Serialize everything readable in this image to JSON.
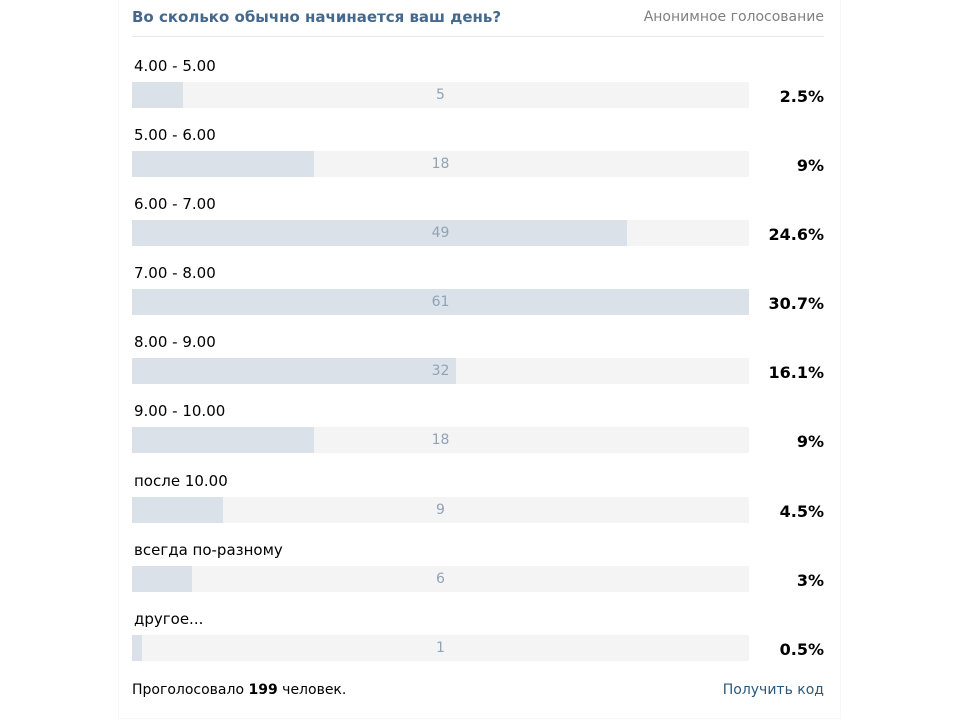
{
  "poll": {
    "question": "Во сколько обычно начинается ваш день?",
    "type_label": "Анонимное голосование",
    "options": [
      {
        "label": "4.00 - 5.00",
        "votes": "5",
        "percent": "2.5%",
        "fill": 0.082
      },
      {
        "label": "5.00 - 6.00",
        "votes": "18",
        "percent": "9%",
        "fill": 0.295
      },
      {
        "label": "6.00 - 7.00",
        "votes": "49",
        "percent": "24.6%",
        "fill": 0.803
      },
      {
        "label": "7.00 - 8.00",
        "votes": "61",
        "percent": "30.7%",
        "fill": 1.0
      },
      {
        "label": "8.00 - 9.00",
        "votes": "32",
        "percent": "16.1%",
        "fill": 0.525
      },
      {
        "label": "9.00 - 10.00",
        "votes": "18",
        "percent": "9%",
        "fill": 0.295
      },
      {
        "label": "после 10.00",
        "votes": "9",
        "percent": "4.5%",
        "fill": 0.148
      },
      {
        "label": "всегда по-разному",
        "votes": "6",
        "percent": "3%",
        "fill": 0.098
      },
      {
        "label": "другое...",
        "votes": "1",
        "percent": "0.5%",
        "fill": 0.016
      }
    ],
    "footer": {
      "voted_prefix": "Проголосовало",
      "voted_count": "199",
      "voted_suffix": "человек.",
      "get_code": "Получить код"
    }
  }
}
